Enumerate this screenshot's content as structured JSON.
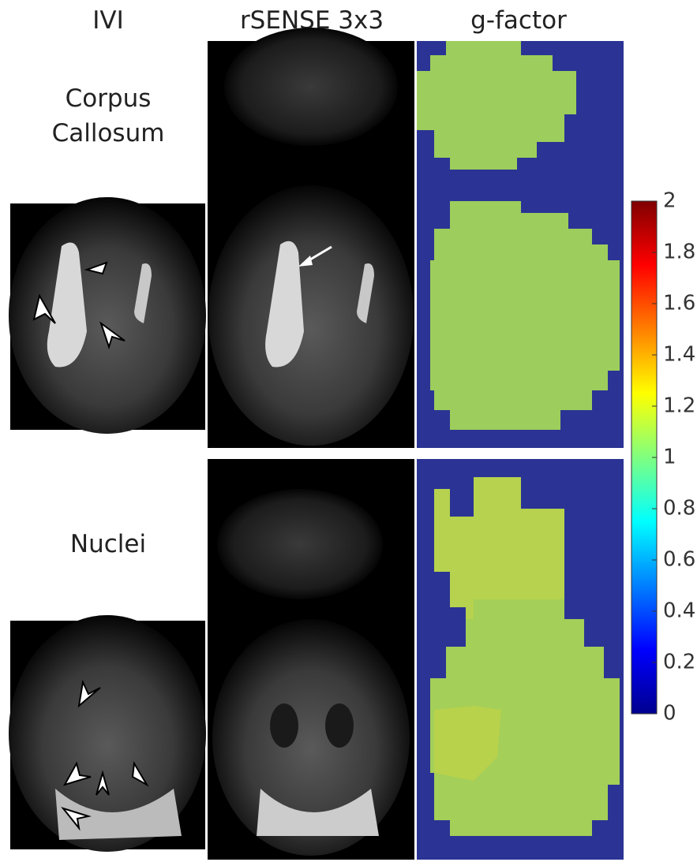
{
  "header": {
    "columns": [
      "IVI",
      "rSENSE 3x3",
      "g-factor"
    ]
  },
  "rows": [
    {
      "label": "Corpus Callosum"
    },
    {
      "label": "Nuclei"
    }
  ],
  "colorbar": {
    "lim": [
      0,
      2
    ],
    "ticks": [
      0,
      0.2,
      0.4,
      0.6,
      0.8,
      1,
      1.2,
      1.4,
      1.6,
      1.8,
      2
    ]
  }
}
